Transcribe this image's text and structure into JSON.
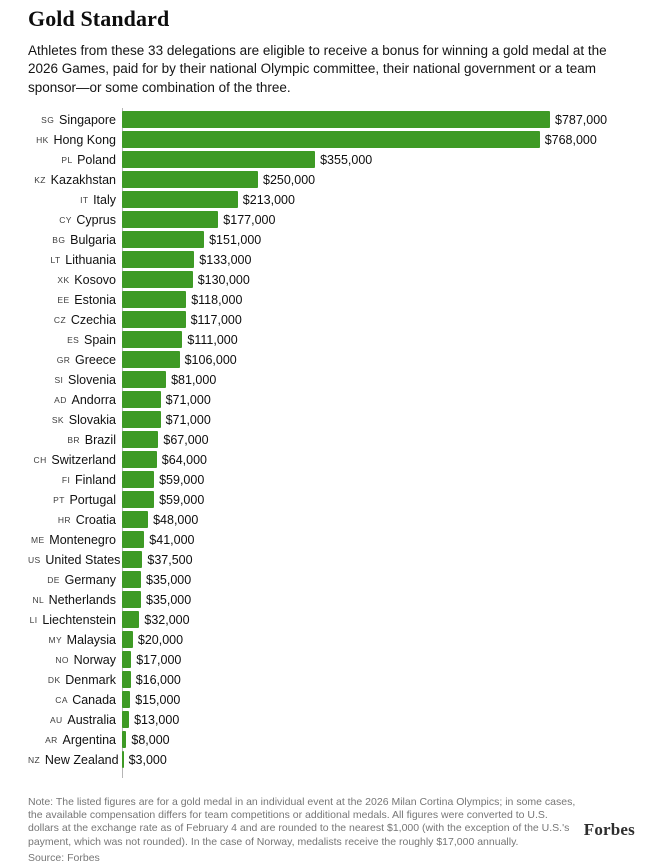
{
  "header": {
    "title": "Gold Standard",
    "subtitle": "Athletes from these 33 delegations are eligible to receive a bonus for winning a gold medal at the 2026 Games, paid for by their national Olympic committee, their national government or a team sponsor—or some combination of the three."
  },
  "chart_data": {
    "type": "bar",
    "orientation": "horizontal",
    "unit": "USD",
    "bar_color": "#3e9a25",
    "max_value": 787000,
    "xlim": [
      0,
      787000
    ],
    "legend": "none",
    "grid": "off",
    "categories": [
      {
        "code": "SG",
        "name": "Singapore",
        "value": 787000,
        "label": "$787,000"
      },
      {
        "code": "HK",
        "name": "Hong Kong",
        "value": 768000,
        "label": "$768,000"
      },
      {
        "code": "PL",
        "name": "Poland",
        "value": 355000,
        "label": "$355,000"
      },
      {
        "code": "KZ",
        "name": "Kazakhstan",
        "value": 250000,
        "label": "$250,000"
      },
      {
        "code": "IT",
        "name": "Italy",
        "value": 213000,
        "label": "$213,000"
      },
      {
        "code": "CY",
        "name": "Cyprus",
        "value": 177000,
        "label": "$177,000"
      },
      {
        "code": "BG",
        "name": "Bulgaria",
        "value": 151000,
        "label": "$151,000"
      },
      {
        "code": "LT",
        "name": "Lithuania",
        "value": 133000,
        "label": "$133,000"
      },
      {
        "code": "XK",
        "name": "Kosovo",
        "value": 130000,
        "label": "$130,000"
      },
      {
        "code": "EE",
        "name": "Estonia",
        "value": 118000,
        "label": "$118,000"
      },
      {
        "code": "CZ",
        "name": "Czechia",
        "value": 117000,
        "label": "$117,000"
      },
      {
        "code": "ES",
        "name": "Spain",
        "value": 111000,
        "label": "$111,000"
      },
      {
        "code": "GR",
        "name": "Greece",
        "value": 106000,
        "label": "$106,000"
      },
      {
        "code": "SI",
        "name": "Slovenia",
        "value": 81000,
        "label": "$81,000"
      },
      {
        "code": "AD",
        "name": "Andorra",
        "value": 71000,
        "label": "$71,000"
      },
      {
        "code": "SK",
        "name": "Slovakia",
        "value": 71000,
        "label": "$71,000"
      },
      {
        "code": "BR",
        "name": "Brazil",
        "value": 67000,
        "label": "$67,000"
      },
      {
        "code": "CH",
        "name": "Switzerland",
        "value": 64000,
        "label": "$64,000"
      },
      {
        "code": "FI",
        "name": "Finland",
        "value": 59000,
        "label": "$59,000"
      },
      {
        "code": "PT",
        "name": "Portugal",
        "value": 59000,
        "label": "$59,000"
      },
      {
        "code": "HR",
        "name": "Croatia",
        "value": 48000,
        "label": "$48,000"
      },
      {
        "code": "ME",
        "name": "Montenegro",
        "value": 41000,
        "label": "$41,000"
      },
      {
        "code": "US",
        "name": "United States",
        "value": 37500,
        "label": "$37,500"
      },
      {
        "code": "DE",
        "name": "Germany",
        "value": 35000,
        "label": "$35,000"
      },
      {
        "code": "NL",
        "name": "Netherlands",
        "value": 35000,
        "label": "$35,000"
      },
      {
        "code": "LI",
        "name": "Liechtenstein",
        "value": 32000,
        "label": "$32,000"
      },
      {
        "code": "MY",
        "name": "Malaysia",
        "value": 20000,
        "label": "$20,000"
      },
      {
        "code": "NO",
        "name": "Norway",
        "value": 17000,
        "label": "$17,000"
      },
      {
        "code": "DK",
        "name": "Denmark",
        "value": 16000,
        "label": "$16,000"
      },
      {
        "code": "CA",
        "name": "Canada",
        "value": 15000,
        "label": "$15,000"
      },
      {
        "code": "AU",
        "name": "Australia",
        "value": 13000,
        "label": "$13,000"
      },
      {
        "code": "AR",
        "name": "Argentina",
        "value": 8000,
        "label": "$8,000"
      },
      {
        "code": "NZ",
        "name": "New Zealand",
        "value": 3000,
        "label": "$3,000"
      }
    ]
  },
  "footer": {
    "note": "Note: The listed figures are for a gold medal in an individual event at the 2026 Milan Cortina Olympics; in some cases, the available compensation differs for team competitions or additional medals. All figures were converted to U.S. dollars at the exchange rate as of February 4 and are rounded to the nearest $1,000 (with the exception of the U.S.'s payment, which was not rounded). In the case of Norway, medalists receive the roughly $17,000 annually.",
    "source": "Source: Forbes",
    "brand": "Forbes"
  }
}
